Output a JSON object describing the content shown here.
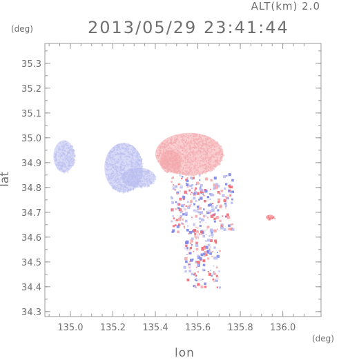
{
  "header": {
    "altitude_label": "ALT(km) 2.0",
    "datetime": "2013/05/29 23:41:44"
  },
  "axes": {
    "y_unit": "(deg)",
    "x_unit": "(deg)",
    "y_label": "lat",
    "x_label": "lon"
  },
  "chart_data": {
    "type": "heatmap",
    "xlabel": "lon",
    "ylabel": "lat",
    "xlim": [
      134.88,
      136.18
    ],
    "ylim": [
      34.28,
      35.38
    ],
    "x_ticks": [
      "135.0",
      "135.2",
      "135.4",
      "135.6",
      "135.8",
      "136.0"
    ],
    "y_ticks": [
      "34.3",
      "34.4",
      "34.5",
      "34.6",
      "34.7",
      "34.8",
      "34.9",
      "35.0",
      "35.1",
      "35.2",
      "35.3"
    ],
    "grid": false,
    "colors": {
      "receding": "#f4a8ac",
      "approaching": "#b9bdf0",
      "strong_receding": "#f26b74",
      "strong_approaching": "#7f86e6"
    },
    "regions": [
      {
        "lon": [
          134.92,
          135.02
        ],
        "lat": [
          34.86,
          34.99
        ],
        "value": -0.35
      },
      {
        "lon": [
          135.16,
          135.34
        ],
        "lat": [
          34.78,
          34.98
        ],
        "value": -0.45
      },
      {
        "lon": [
          135.24,
          135.4
        ],
        "lat": [
          34.8,
          34.88
        ],
        "value": -0.55
      },
      {
        "lon": [
          135.4,
          135.72
        ],
        "lat": [
          34.85,
          35.02
        ],
        "value": 0.4
      },
      {
        "lon": [
          135.42,
          135.52
        ],
        "lat": [
          34.86,
          34.95
        ],
        "value": 0.1
      },
      {
        "lon": [
          135.47,
          135.76
        ],
        "lat": [
          34.62,
          34.86
        ],
        "value": 0.0,
        "speckle": true
      },
      {
        "lon": [
          135.53,
          135.7
        ],
        "lat": [
          34.4,
          34.62
        ],
        "value": 0.0,
        "speckle": true
      },
      {
        "lon": [
          135.92,
          135.96
        ],
        "lat": [
          34.67,
          34.69
        ],
        "value": 0.85
      }
    ]
  }
}
